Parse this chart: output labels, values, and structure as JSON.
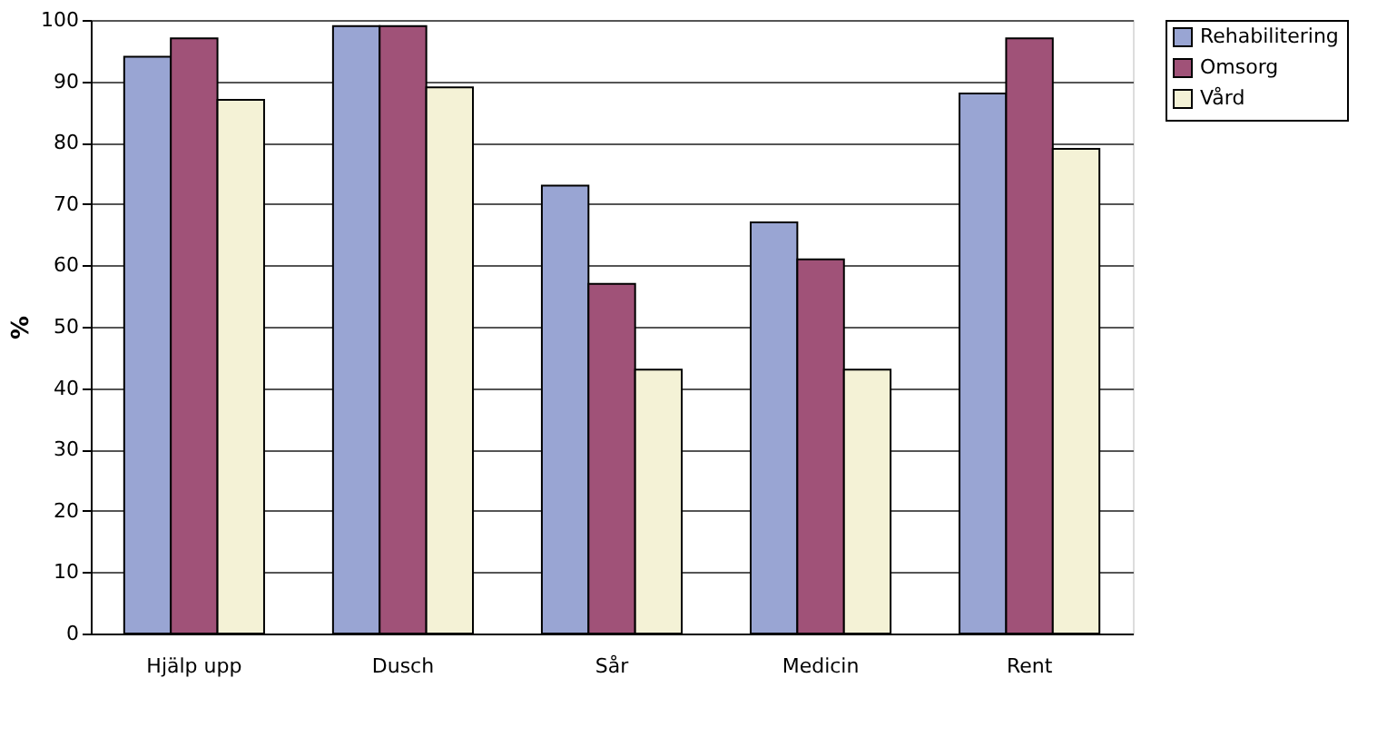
{
  "chart_data": {
    "type": "bar",
    "ylabel": "%",
    "categories": [
      "Hjälp upp",
      "Dusch",
      "Sår",
      "Medicin",
      "Rent"
    ],
    "series": [
      {
        "name": "Rehabilitering",
        "color": "#99a5d3",
        "values": [
          94,
          99,
          73,
          67,
          88
        ]
      },
      {
        "name": "Omsorg",
        "color": "#a05278",
        "values": [
          97,
          99,
          57,
          61,
          97
        ]
      },
      {
        "name": "Vård",
        "color": "#f4f2d6",
        "values": [
          87,
          89,
          43,
          43,
          79
        ]
      }
    ],
    "ylim": [
      0,
      100
    ],
    "yticks": [
      0,
      10,
      20,
      30,
      40,
      50,
      60,
      70,
      80,
      90,
      100
    ],
    "grid": "y",
    "legend": "right"
  }
}
